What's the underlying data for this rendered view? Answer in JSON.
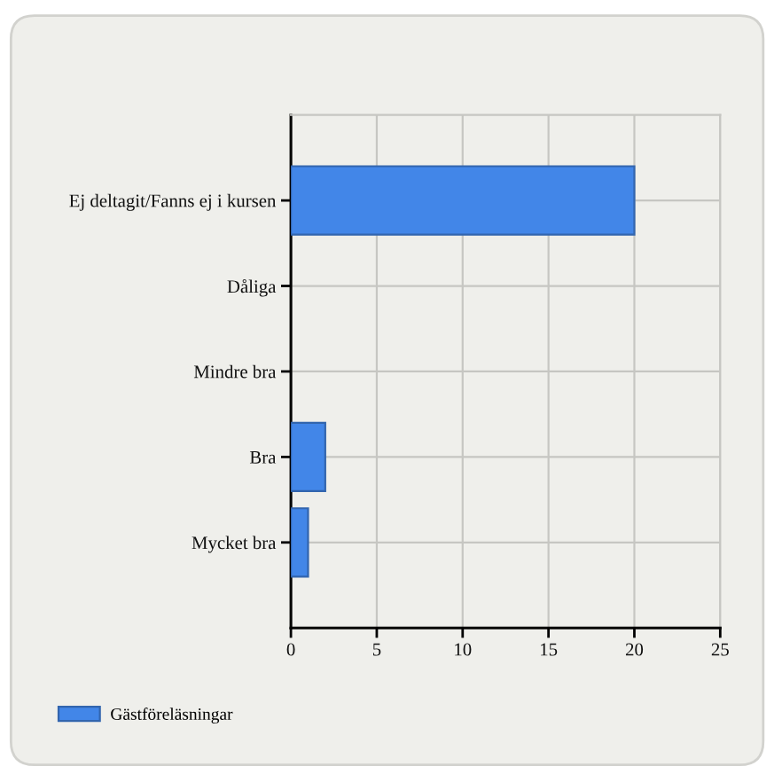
{
  "chart_data": {
    "type": "bar",
    "orientation": "horizontal",
    "categories": [
      "Ej deltagit/Fanns ej i kursen",
      "Dåliga",
      "Mindre bra",
      "Bra",
      "Mycket bra"
    ],
    "series": [
      {
        "name": "Gästföreläsningar",
        "color": "#4286e8",
        "values": [
          20,
          0,
          0,
          2,
          1
        ]
      }
    ],
    "xlim": [
      0,
      25
    ],
    "xticks": [
      0,
      5,
      10,
      15,
      20,
      25
    ],
    "grid": true,
    "legend": "bottom left"
  }
}
